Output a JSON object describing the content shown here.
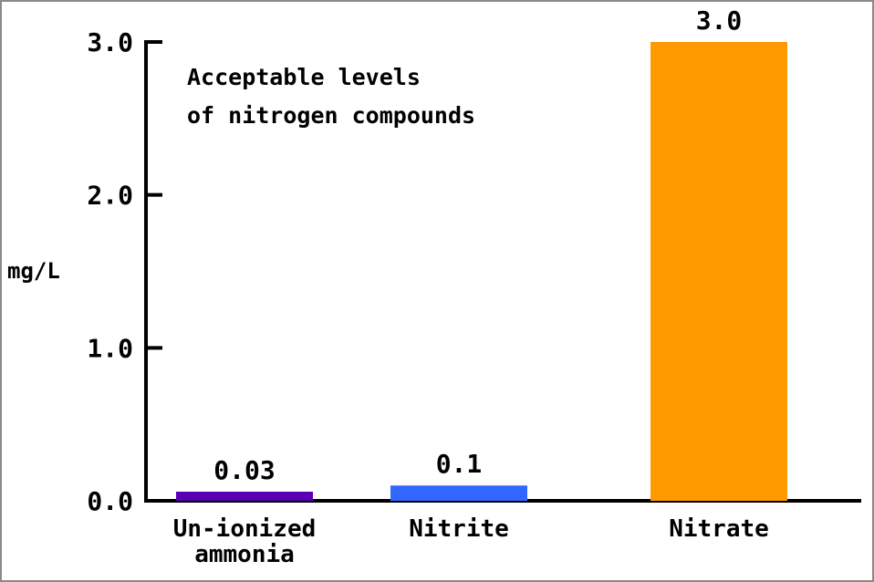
{
  "chart_data": {
    "type": "bar",
    "title_lines": [
      "Acceptable levels",
      "of nitrogen compounds"
    ],
    "ylabel": "mg/L",
    "xlabel": "",
    "ylim": [
      0,
      3.0
    ],
    "yticks": [
      "0.0",
      "1.0",
      "2.0",
      "3.0"
    ],
    "categories": [
      {
        "lines": [
          "Un-ionized",
          "ammonia"
        ]
      },
      {
        "lines": [
          "Nitrite"
        ]
      },
      {
        "lines": [
          "Nitrate"
        ]
      }
    ],
    "values": [
      0.03,
      0.1,
      3.0
    ],
    "data_labels": [
      "0.03",
      "0.1",
      "3.0"
    ],
    "colors": [
      "#5a00b4",
      "#3366ff",
      "#ff9900"
    ],
    "grid": false,
    "legend": "none"
  }
}
